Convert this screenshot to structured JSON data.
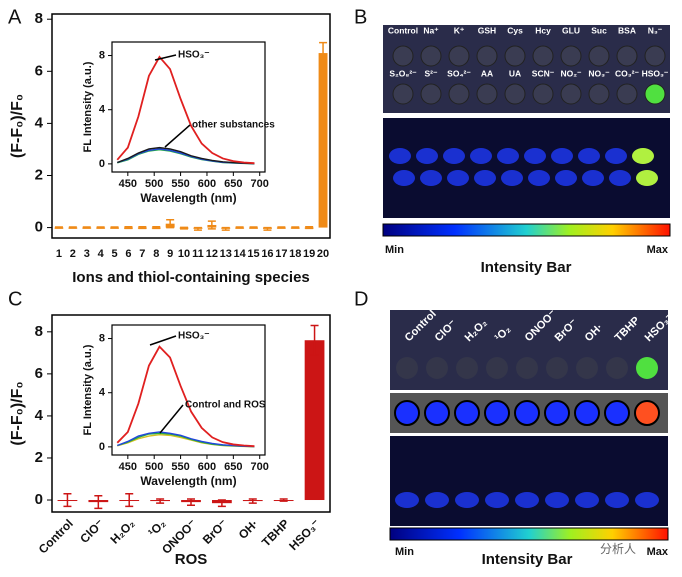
{
  "chart_data": [
    {
      "type": "bar",
      "categories": [
        "1",
        "2",
        "3",
        "4",
        "5",
        "6",
        "7",
        "8",
        "9",
        "10",
        "11",
        "12",
        "13",
        "14",
        "15",
        "16",
        "17",
        "18",
        "19",
        "20"
      ],
      "values": [
        0,
        0,
        0,
        0,
        0,
        0,
        0,
        0,
        0.15,
        -0.02,
        -0.05,
        0.1,
        -0.05,
        0,
        0,
        -0.05,
        0,
        0,
        0,
        6.7
      ],
      "errors": [
        0.02,
        0.02,
        0.02,
        0.02,
        0.02,
        0.03,
        0.03,
        0.03,
        0.15,
        0.03,
        0.05,
        0.15,
        0.05,
        0.02,
        0.02,
        0.05,
        0.02,
        0.02,
        0.03,
        0.4
      ],
      "color": "#ef8a17",
      "xlabel": "Ions and thiol-containing species",
      "ylabel": "(F-F₀)/F₀",
      "ylim": [
        -0.4,
        8.2
      ],
      "yticks": [
        0,
        2,
        4,
        6,
        8
      ]
    },
    {
      "type": "line",
      "x": [
        430,
        450,
        470,
        490,
        510,
        530,
        550,
        570,
        590,
        610,
        630,
        650,
        670,
        690
      ],
      "series": [
        {
          "color": "#e02020",
          "values": [
            0.3,
            1.2,
            3.5,
            6.5,
            7.9,
            7.0,
            4.8,
            2.8,
            1.5,
            0.8,
            0.4,
            0.2,
            0.1,
            0.05
          ]
        },
        {
          "color": "#1a1a1a",
          "values": [
            0.1,
            0.4,
            0.8,
            1.1,
            1.2,
            1.1,
            0.9,
            0.6,
            0.4,
            0.25,
            0.15,
            0.1,
            0.05,
            0.02
          ]
        },
        {
          "color": "#2244dd",
          "values": [
            0.1,
            0.35,
            0.75,
            1.0,
            1.1,
            1.0,
            0.8,
            0.55,
            0.35,
            0.22,
            0.12,
            0.08,
            0.04,
            0.02
          ]
        },
        {
          "color": "#22aa44",
          "values": [
            0.08,
            0.3,
            0.7,
            0.95,
            1.05,
            0.95,
            0.75,
            0.5,
            0.32,
            0.2,
            0.1,
            0.06,
            0.03,
            0.01
          ]
        }
      ],
      "annotations": [
        "HSO₃⁻",
        "other substances"
      ],
      "xlabel": "Wavelength (nm)",
      "ylabel": "FL Intensity (a.u.)",
      "xlim": [
        420,
        710
      ],
      "xticks": [
        450,
        500,
        550,
        600,
        650,
        700
      ],
      "ylim": [
        -0.6,
        9
      ],
      "yticks": [
        0,
        4,
        8
      ]
    },
    {
      "type": "bar",
      "categories": [
        "Control",
        "ClO⁻",
        "H₂O₂",
        "¹O₂",
        "ONOO⁻",
        "BrO⁻",
        "OH·",
        "TBHP",
        "HSO₃⁻"
      ],
      "values": [
        0,
        -0.1,
        0,
        -0.05,
        -0.1,
        -0.15,
        -0.05,
        0,
        7.6
      ],
      "errors": [
        0.3,
        0.3,
        0.3,
        0.1,
        0.15,
        0.15,
        0.1,
        0.05,
        0.7
      ],
      "color": "#cc1515",
      "xlabel": "ROS",
      "ylabel": "(F-F₀)/F₀",
      "ylim": [
        -0.57,
        8.8
      ],
      "yticks": [
        0,
        2,
        4,
        6,
        8
      ]
    },
    {
      "type": "line",
      "x": [
        430,
        450,
        470,
        490,
        510,
        530,
        550,
        570,
        590,
        610,
        630,
        650,
        670,
        690
      ],
      "series": [
        {
          "color": "#e02020",
          "values": [
            0.3,
            1.1,
            3.2,
            6.0,
            7.4,
            6.6,
            4.5,
            2.6,
            1.4,
            0.7,
            0.35,
            0.18,
            0.1,
            0.05
          ]
        },
        {
          "color": "#2244dd",
          "values": [
            0.1,
            0.4,
            0.8,
            1.0,
            1.1,
            1.0,
            0.85,
            0.6,
            0.4,
            0.25,
            0.15,
            0.1,
            0.05,
            0.02
          ]
        },
        {
          "color": "#22aa44",
          "values": [
            0.1,
            0.35,
            0.7,
            0.95,
            1.0,
            0.95,
            0.8,
            0.55,
            0.35,
            0.2,
            0.12,
            0.08,
            0.04,
            0.02
          ]
        },
        {
          "color": "#d4c020",
          "values": [
            0.08,
            0.3,
            0.6,
            0.8,
            0.9,
            0.85,
            0.7,
            0.5,
            0.3,
            0.18,
            0.1,
            0.06,
            0.03,
            0.01
          ]
        }
      ],
      "annotations": [
        "HSO₃⁻",
        "Control and ROS"
      ],
      "xlabel": "Wavelength (nm)",
      "ylabel": "FL Intensity (a.u.)",
      "xlim": [
        420,
        710
      ],
      "xticks": [
        450,
        500,
        550,
        600,
        650,
        700
      ],
      "ylim": [
        -0.6,
        9
      ],
      "yticks": [
        0,
        4,
        8
      ]
    }
  ],
  "panel_labels": [
    "A",
    "B",
    "C",
    "D"
  ],
  "panel_b": {
    "row1": [
      "Control",
      "Na⁺",
      "K⁺",
      "GSH",
      "Cys",
      "Hcy",
      "GLU",
      "Suc",
      "BSA",
      "N₃⁻"
    ],
    "row2": [
      "S₂O₈²⁻",
      "S²⁻",
      "SO₄²⁻",
      "AA",
      "UA",
      "SCN⁻",
      "NO₂⁻",
      "NO₃⁻",
      "CO₃²⁻",
      "HSO₃⁻"
    ],
    "min": "Min",
    "max": "Max",
    "bar_title": "Intensity Bar"
  },
  "panel_d": {
    "labels": [
      "Control",
      "ClO⁻",
      "H₂O₂",
      "¹O₂",
      "ONOO⁻",
      "BrO⁻",
      "OH·",
      "TBHP",
      "HSO₃⁻"
    ],
    "min": "Min",
    "max": "Max",
    "bar_title": "Intensity Bar",
    "watermark": "分析人"
  }
}
